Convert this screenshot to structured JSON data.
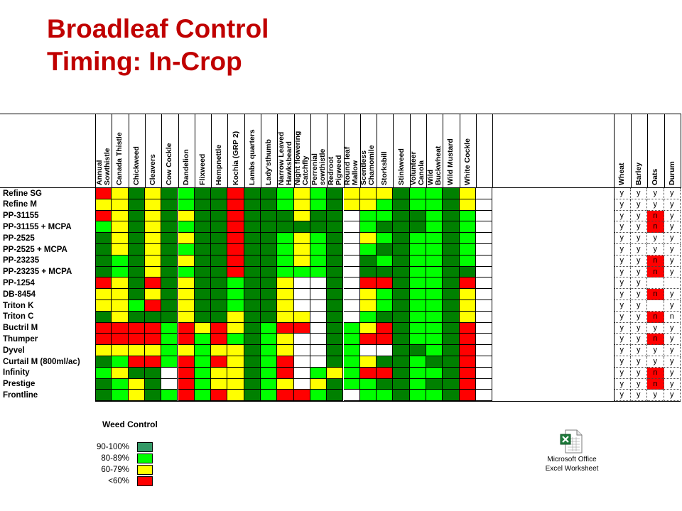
{
  "title_line1": "Broadleaf Control",
  "title_line2": "Timing: In-Crop",
  "weed_columns": [
    "Annual Sowthistle",
    "Canada Thistle",
    "Chickweed",
    "Cleavers",
    "Cow Cockle",
    "Dandelion",
    "Flixweed",
    "Hempnettle",
    "Kochia (GRP 2)",
    "Lambs quarters",
    "Lady'sthumb",
    "Narrow Leaved Hawksbeard",
    "Night flowering Catchfly",
    "Perrenial sowthistle",
    "Redroot Pigweed",
    "Round leaf Mallow",
    "Scentless Chamomile",
    "Storksbill",
    "Stinkweed",
    "Volunteer Canola",
    "Wild Buckwheat",
    "Wild Mustard",
    "White Cockle"
  ],
  "weed_column_lines": [
    [
      "Annual",
      "Sowthistle"
    ],
    [
      "Canada Thistle"
    ],
    [
      "Chickweed"
    ],
    [
      "Cleavers"
    ],
    [
      "Cow Cockle"
    ],
    [
      "Dandelion"
    ],
    [
      "Flixweed"
    ],
    [
      "Hempnettle"
    ],
    [
      "Kochia (GRP 2)"
    ],
    [
      "Lambs quarters"
    ],
    [
      "Lady'sthumb"
    ],
    [
      "Narrow Leaved",
      "Hawksbeard"
    ],
    [
      "Night flowering",
      "Catchfly"
    ],
    [
      "Perrenial",
      "sowthistle"
    ],
    [
      "Redroot",
      "Pigweed"
    ],
    [
      "Round leaf",
      "Mallow"
    ],
    [
      "Scentless",
      "Chamomile"
    ],
    [
      "Storksbill"
    ],
    [
      "Stinkweed"
    ],
    [
      "Volunteer",
      "Canola"
    ],
    [
      "Wild",
      "Buckwheat"
    ],
    [
      "Wild Mustard"
    ],
    [
      "White Cockle"
    ]
  ],
  "crop_columns": [
    "Wheat",
    "Barley",
    "Oats",
    "Durum"
  ],
  "colors": {
    "D": "#008000",
    "L": "#00ff00",
    "Y": "#ffff00",
    "R": "#ff0000",
    "W": "#ffffff",
    "title": "#c00000"
  },
  "rows": [
    {
      "name": "Refine SG",
      "cells": "RYDYDLDDRDDLYLDYYYDLLDY",
      "crops": [
        "y",
        "y",
        "y",
        "y"
      ],
      "crop_hl": [
        0,
        0,
        0,
        0
      ]
    },
    {
      "name": "Refine M",
      "cells": "YYDYDLDDRDDLYLDYYLDLLDY",
      "crops": [
        "y",
        "y",
        "y",
        "y"
      ],
      "crop_hl": [
        0,
        0,
        0,
        0
      ]
    },
    {
      "name": "PP-31155",
      "cells": "RYDYDYDDRDDDYDDWLLDDLDL",
      "crops": [
        "y",
        "y",
        "n",
        "y"
      ],
      "crop_hl": [
        0,
        0,
        1,
        0
      ]
    },
    {
      "name": "PP-31155 + MCPA",
      "cells": "LYDYDLDDRDDDDDDWLDDDLDL",
      "crops": [
        "y",
        "y",
        "n",
        "y"
      ],
      "crop_hl": [
        0,
        0,
        1,
        0
      ]
    },
    {
      "name": "PP-2525",
      "cells": "DYDYDYDDRDDLYLDWYLDLLDL",
      "crops": [
        "y",
        "y",
        "y",
        "y"
      ],
      "crop_hl": [
        0,
        0,
        0,
        0
      ]
    },
    {
      "name": "PP-2525 + MCPA",
      "cells": "DYDYDLDDRDDLYLDWLDDLLDL",
      "crops": [
        "y",
        "y",
        "y",
        "y"
      ],
      "crop_hl": [
        0,
        0,
        0,
        0
      ]
    },
    {
      "name": "PP-23235",
      "cells": "DLDYDYDDRDDLYLDWDLDLLDL",
      "crops": [
        "y",
        "y",
        "n",
        "y"
      ],
      "crop_hl": [
        0,
        0,
        1,
        0
      ]
    },
    {
      "name": "PP-23235 + MCPA",
      "cells": "DLDYDLDDRDDLLLDWDDDLLDD",
      "crops": [
        "y",
        "y",
        "n",
        "y"
      ],
      "crop_hl": [
        0,
        0,
        1,
        0
      ]
    },
    {
      "name": "PP-1254",
      "cells": "RYDRDYDDLDDYWWDWRRDLLDR",
      "crops": [
        "y",
        "y",
        "",
        ""
      ],
      "crop_hl": [
        0,
        0,
        0,
        0
      ]
    },
    {
      "name": "DB-8454",
      "cells": "YYDYDYDDLDDYWWDWYLDLLDY",
      "crops": [
        "y",
        "y",
        "n",
        "y"
      ],
      "crop_hl": [
        0,
        0,
        1,
        0
      ]
    },
    {
      "name": "Triton K",
      "cells": "YYLRDYDDLDDYWWDWYLDLLDY",
      "crops": [
        "y",
        "y",
        "",
        "y"
      ],
      "crop_hl": [
        0,
        0,
        0,
        0
      ]
    },
    {
      "name": "Triton C",
      "cells": "DYDDDYDDYDDYYWDWLDDLLDY",
      "crops": [
        "y",
        "y",
        "n",
        "n"
      ],
      "crop_hl": [
        0,
        0,
        1,
        0
      ]
    },
    {
      "name": "Buctril M",
      "cells": "RRRRLRYRYDLRRWDLYRDLLDR",
      "crops": [
        "y",
        "y",
        "y",
        "y"
      ],
      "crop_hl": [
        0,
        0,
        0,
        0
      ]
    },
    {
      "name": "Thumper",
      "cells": "RRRRLRLRLDLYWWDLRRDLLDR",
      "crops": [
        "y",
        "y",
        "n",
        "y"
      ],
      "crop_hl": [
        0,
        0,
        1,
        0
      ]
    },
    {
      "name": "Dyvel",
      "cells": "YYYYLYLYYDLYWWDLWWDDLDR",
      "crops": [
        "y",
        "y",
        "y",
        "y"
      ],
      "crop_hl": [
        0,
        0,
        0,
        0
      ]
    },
    {
      "name": "Curtail M (800ml/ac)",
      "cells": "DLRRLRLRYDLRWWDLYDDLDDR",
      "crops": [
        "y",
        "y",
        "y",
        "y"
      ],
      "crop_hl": [
        0,
        0,
        0,
        0
      ]
    },
    {
      "name": "Infinity",
      "cells": "LYDDWRLYYDLRWLYLRRDLLDR",
      "crops": [
        "y",
        "y",
        "n",
        "y"
      ],
      "crop_hl": [
        0,
        0,
        1,
        0
      ]
    },
    {
      "name": "Prestige",
      "cells": "DLYDWRLYYDLYWYDLLDDLDDR",
      "crops": [
        "y",
        "y",
        "n",
        "y"
      ],
      "crop_hl": [
        0,
        0,
        1,
        0
      ]
    },
    {
      "name": "Frontline",
      "cells": "DLYDLRLRYDLRRLDWLLDLLDR",
      "crops": [
        "y",
        "y",
        "y",
        "y"
      ],
      "crop_hl": [
        0,
        0,
        0,
        0
      ]
    }
  ],
  "legend": {
    "title": "Weed Control",
    "items": [
      {
        "label": "90-100%",
        "color": "#339966"
      },
      {
        "label": "80-89%",
        "color": "#00ff00"
      },
      {
        "label": "60-79%",
        "color": "#ffff00"
      },
      {
        "label": "<60%",
        "color": "#ff0000"
      }
    ]
  },
  "excel": {
    "caption_line1": "Microsoft Office",
    "caption_line2": "Excel Worksheet"
  }
}
